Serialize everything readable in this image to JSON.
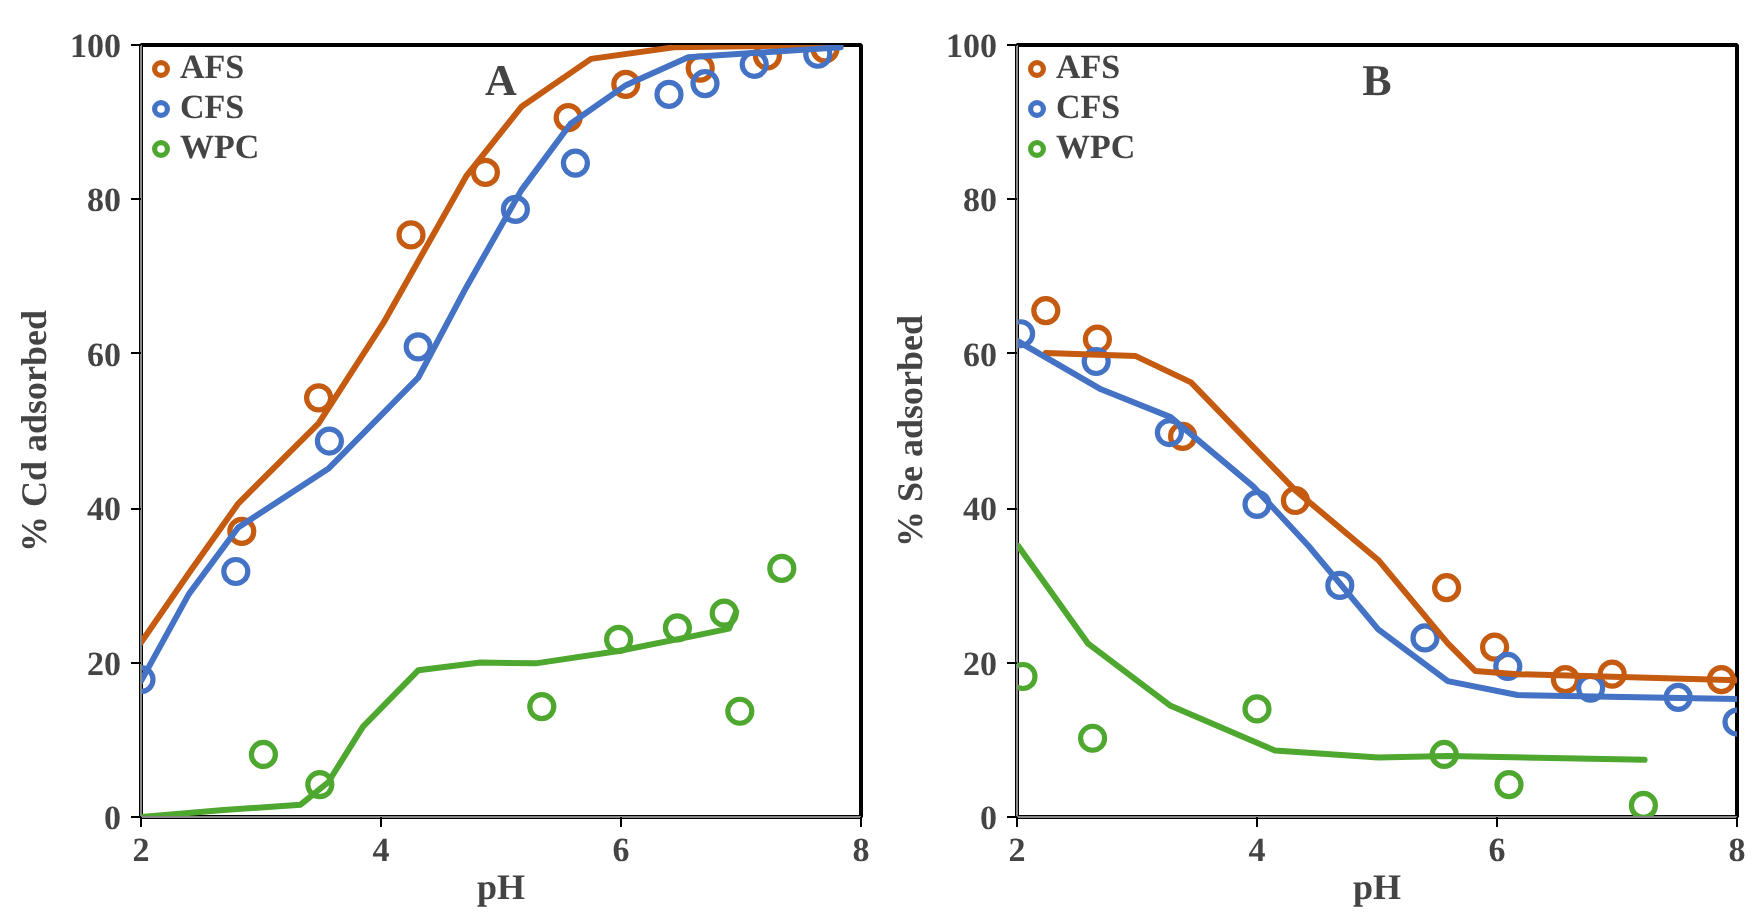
{
  "chart_data": [
    {
      "type": "scatter",
      "title": "A",
      "xlabel": "pH",
      "ylabel": "% Cd adsorbed",
      "xlim": [
        2,
        8
      ],
      "ylim": [
        0,
        100
      ],
      "xticks": [
        2,
        4,
        6,
        8
      ],
      "yticks": [
        0,
        20,
        40,
        60,
        80,
        100
      ],
      "grid": false,
      "legend": "top left",
      "marker": "circle",
      "series": [
        {
          "name": "AFS",
          "color": "#c55a11",
          "x": [
            2.84,
            3.48,
            4.25,
            4.87,
            5.56,
            6.04,
            6.66,
            7.22,
            7.7
          ],
          "values": [
            37.0,
            54.3,
            75.4,
            83.5,
            90.6,
            94.9,
            97.0,
            98.6,
            99.5
          ]
        },
        {
          "name": "CFS",
          "color": "#4472c4",
          "x": [
            2.0,
            2.79,
            3.57,
            4.31,
            5.12,
            5.62,
            6.4,
            6.7,
            7.11,
            7.64
          ],
          "values": [
            17.8,
            31.8,
            48.7,
            60.9,
            78.7,
            84.7,
            93.6,
            95.0,
            97.5,
            98.8
          ]
        },
        {
          "name": "WPC",
          "color": "#4ea72e",
          "x": [
            3.02,
            3.49,
            5.34,
            5.98,
            6.47,
            6.86,
            6.99,
            7.34
          ],
          "values": [
            8.1,
            4.2,
            14.3,
            23.0,
            24.5,
            26.4,
            13.7,
            32.2
          ]
        },
        {
          "type": "line",
          "marker": "none",
          "color": "#c55a11",
          "x": [
            2.0,
            2.4,
            2.81,
            3.48,
            4.02,
            4.71,
            5.17,
            5.75,
            6.44,
            7.83
          ],
          "values": [
            22.6,
            31.6,
            40.6,
            51.0,
            64.0,
            83.0,
            92.0,
            98.2,
            99.7,
            100.0
          ]
        },
        {
          "type": "line",
          "marker": "none",
          "color": "#4472c4",
          "x": [
            2.0,
            2.4,
            2.81,
            3.56,
            4.31,
            4.71,
            5.17,
            5.58,
            6.04,
            6.56,
            7.83
          ],
          "values": [
            17.6,
            28.9,
            37.5,
            45.1,
            56.9,
            68.6,
            81.2,
            89.8,
            94.8,
            98.4,
            99.7
          ]
        },
        {
          "type": "line",
          "marker": "none",
          "color": "#4ea72e",
          "x": [
            2.0,
            2.69,
            3.33,
            3.56,
            3.85,
            4.31,
            4.83,
            5.29,
            5.98,
            6.62,
            6.9,
            6.96
          ],
          "values": [
            0.0,
            0.9,
            1.6,
            4.5,
            11.7,
            19.0,
            20.0,
            19.9,
            21.5,
            23.5,
            24.4,
            26.6
          ]
        }
      ]
    },
    {
      "type": "scatter",
      "title": "B",
      "xlabel": "pH",
      "ylabel": "% Se adsorbed",
      "xlim": [
        2,
        8
      ],
      "ylim": [
        0,
        100
      ],
      "xticks": [
        2,
        4,
        6,
        8
      ],
      "yticks": [
        0,
        20,
        40,
        60,
        80,
        100
      ],
      "grid": false,
      "legend": "top left",
      "marker": "circle",
      "series": [
        {
          "name": "AFS",
          "color": "#c55a11",
          "x": [
            2.24,
            2.67,
            3.38,
            4.32,
            5.58,
            5.98,
            6.57,
            6.96,
            7.87
          ],
          "values": [
            65.6,
            61.9,
            49.3,
            41.0,
            29.7,
            22.0,
            17.8,
            18.5,
            17.8
          ]
        },
        {
          "name": "CFS",
          "color": "#4472c4",
          "x": [
            2.03,
            2.66,
            3.27,
            4.0,
            4.69,
            5.4,
            6.09,
            6.78,
            7.51,
            8.0
          ],
          "values": [
            62.6,
            59.0,
            49.8,
            40.5,
            30.0,
            23.2,
            19.5,
            16.7,
            15.5,
            12.3
          ]
        },
        {
          "name": "WPC",
          "color": "#4ea72e",
          "x": [
            2.05,
            2.63,
            4.0,
            5.56,
            6.1,
            7.22
          ],
          "values": [
            18.2,
            10.2,
            14.0,
            8.1,
            4.2,
            1.5
          ]
        },
        {
          "type": "line",
          "marker": "none",
          "color": "#c55a11",
          "x": [
            2.24,
            2.99,
            3.45,
            4.32,
            5.01,
            5.59,
            5.82,
            6.17,
            8.0
          ],
          "values": [
            60.1,
            59.7,
            56.3,
            42.3,
            33.3,
            22.5,
            18.9,
            18.5,
            17.7
          ]
        },
        {
          "type": "line",
          "marker": "none",
          "color": "#4472c4",
          "x": [
            2.0,
            2.7,
            3.28,
            3.97,
            4.43,
            5.01,
            5.59,
            6.17,
            8.0
          ],
          "values": [
            61.7,
            55.4,
            51.8,
            42.8,
            35.1,
            24.3,
            17.6,
            15.8,
            15.3
          ]
        },
        {
          "type": "line",
          "marker": "none",
          "color": "#4ea72e",
          "x": [
            2.01,
            2.59,
            3.28,
            4.15,
            5.01,
            5.59,
            7.23
          ],
          "values": [
            35.1,
            22.5,
            14.4,
            8.6,
            7.7,
            7.9,
            7.4
          ]
        }
      ]
    }
  ]
}
